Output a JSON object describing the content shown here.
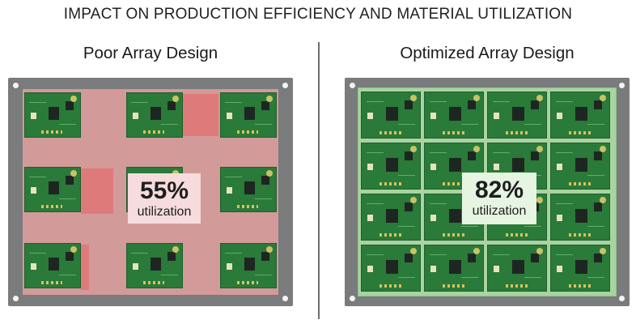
{
  "title": "IMPACT ON PRODUCTION EFFICIENCY AND MATERIAL UTILIZATION",
  "left_panel": {
    "heading": "Poor Array Design",
    "percent": "55%",
    "caption": "utilization",
    "colors": {
      "waste": "#de7a7a",
      "space": "#d39a9a",
      "board": "#2a7a39"
    }
  },
  "right_panel": {
    "heading": "Optimized Array Design",
    "percent": "82%",
    "caption": "utilization",
    "colors": {
      "space": "#a9d3a1",
      "board": "#2a7a39"
    }
  },
  "icons": [
    "pcb-board-icon",
    "mounting-hole-icon"
  ]
}
